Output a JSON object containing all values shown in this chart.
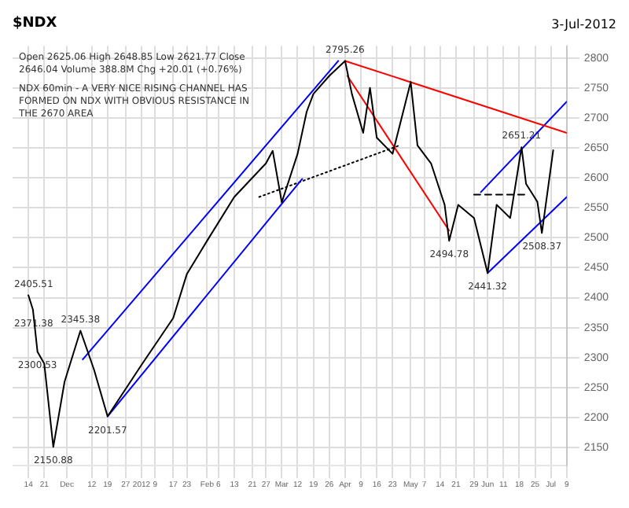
{
  "chart_data": {
    "type": "line",
    "title": "$NDX",
    "subtitle": "3-Jul-2012",
    "annotations": [
      "Open 2625.06 High 2648.85 Low 2621.77 Close 2646.04 Volume 388.8M Chg +20.01 (+0.76%)",
      "NDX 60min - A VERY NICE RISING CHANNEL HAS FORMED ON NDX WITH OBVIOUS RESISTANCE IN THE 2670 AREA",
      {
        "text": "2405.51",
        "x": "2011-11-14",
        "y": 2404
      },
      {
        "text": "2371.38",
        "x": "2011-11-16",
        "y": 2380
      },
      {
        "text": "2300.53",
        "x": "2011-11-18",
        "y": 2310
      },
      {
        "text": "2150.88",
        "x": "2011-11-25",
        "y": 2151
      },
      {
        "text": "2345.38",
        "x": "2011-12-07",
        "y": 2345
      },
      {
        "text": "2201.57",
        "x": "2011-12-19",
        "y": 2202
      },
      {
        "text": "2795.26",
        "x": "2012-04-02",
        "y": 2795
      },
      {
        "text": "2494.78",
        "x": "2012-05-18",
        "y": 2495
      },
      {
        "text": "2441.32",
        "x": "2012-06-04",
        "y": 2441
      },
      {
        "text": "2651.21",
        "x": "2012-06-19",
        "y": 2651
      },
      {
        "text": "2508.37",
        "x": "2012-06-28",
        "y": 2508
      }
    ],
    "series": [
      {
        "color": "#000000",
        "x": [
          "2011-11-14",
          "2011-11-16",
          "2011-11-18",
          "2011-11-21",
          "2011-11-25",
          "2011-11-30",
          "2011-12-07",
          "2011-12-13",
          "2011-12-19",
          "2012-01-03",
          "2012-01-17",
          "2012-01-23",
          "2012-02-01",
          "2012-02-13",
          "2012-02-27",
          "2012-03-01",
          "2012-03-05",
          "2012-03-12",
          "2012-03-16",
          "2012-03-19",
          "2012-03-26",
          "2012-04-02",
          "2012-04-05",
          "2012-04-10",
          "2012-04-13",
          "2012-04-16",
          "2012-04-23",
          "2012-05-01",
          "2012-05-04",
          "2012-05-10",
          "2012-05-16",
          "2012-05-18",
          "2012-05-22",
          "2012-05-29",
          "2012-06-04",
          "2012-06-08",
          "2012-06-14",
          "2012-06-19",
          "2012-06-21",
          "2012-06-26",
          "2012-06-28",
          "2012-07-03"
        ],
        "values": [
          2404,
          2380,
          2310,
          2290,
          2151,
          2260,
          2345,
          2280,
          2202,
          2288,
          2366,
          2439,
          2495,
          2568,
          2624,
          2645,
          2559,
          2640,
          2710,
          2740,
          2770,
          2795,
          2740,
          2675,
          2750,
          2667,
          2640,
          2760,
          2654,
          2624,
          2555,
          2495,
          2555,
          2533,
          2441,
          2555,
          2533,
          2651,
          2590,
          2560,
          2508,
          2646
        ]
      },
      {
        "color": "#0000ff",
        "x": [
          "2011-12-08",
          "2012-03-30"
        ],
        "values": [
          2297,
          2795
        ]
      },
      {
        "color": "#0000ff",
        "x": [
          "2011-12-19",
          "2012-03-14"
        ],
        "values": [
          2202,
          2598
        ]
      },
      {
        "color": "#ff0000",
        "x": [
          "2012-04-02",
          "2012-07-09"
        ],
        "values": [
          2795,
          2675
        ]
      },
      {
        "color": "#ff0000",
        "x": [
          "2012-04-03",
          "2012-05-18"
        ],
        "values": [
          2770,
          2512
        ]
      },
      {
        "color": "#0000ff",
        "x": [
          "2012-06-01",
          "2012-07-09"
        ],
        "values": [
          2576,
          2727
        ]
      },
      {
        "color": "#0000ff",
        "x": [
          "2012-06-04",
          "2012-07-09"
        ],
        "values": [
          2441,
          2568
        ]
      },
      {
        "color": "#000000",
        "line_style": "dotted",
        "x": [
          "2012-02-24",
          "2012-04-26"
        ],
        "values": [
          2568,
          2654
        ]
      },
      {
        "color": "#000000",
        "line_style": "dashed",
        "x": [
          "2012-05-29",
          "2012-06-21"
        ],
        "values": [
          2572,
          2572
        ]
      }
    ],
    "xlim": [
      "2011-11-07",
      "2012-07-09"
    ],
    "xticks": [
      {
        "value": "2011-11-14",
        "label": "14"
      },
      {
        "value": "2011-11-21",
        "label": "21"
      },
      {
        "value": "2011-12-01",
        "label": "Dec"
      },
      {
        "value": "2011-12-12",
        "label": "12"
      },
      {
        "value": "2011-12-19",
        "label": "19"
      },
      {
        "value": "2011-12-27",
        "label": "27"
      },
      {
        "value": "2012-01-03",
        "label": "2012"
      },
      {
        "value": "2012-01-09",
        "label": "9"
      },
      {
        "value": "2012-01-17",
        "label": "17"
      },
      {
        "value": "2012-01-23",
        "label": "23"
      },
      {
        "value": "2012-02-01",
        "label": "Feb"
      },
      {
        "value": "2012-02-06",
        "label": "6"
      },
      {
        "value": "2012-02-13",
        "label": "13"
      },
      {
        "value": "2012-02-21",
        "label": "21"
      },
      {
        "value": "2012-02-27",
        "label": "27"
      },
      {
        "value": "2012-03-05",
        "label": "Mar"
      },
      {
        "value": "2012-03-12",
        "label": "12"
      },
      {
        "value": "2012-03-19",
        "label": "19"
      },
      {
        "value": "2012-03-26",
        "label": "26"
      },
      {
        "value": "2012-04-02",
        "label": "Apr"
      },
      {
        "value": "2012-04-09",
        "label": "9"
      },
      {
        "value": "2012-04-16",
        "label": "16"
      },
      {
        "value": "2012-04-23",
        "label": "23"
      },
      {
        "value": "2012-05-01",
        "label": "May"
      },
      {
        "value": "2012-05-07",
        "label": "7"
      },
      {
        "value": "2012-05-14",
        "label": "14"
      },
      {
        "value": "2012-05-21",
        "label": "21"
      },
      {
        "value": "2012-05-29",
        "label": "29"
      },
      {
        "value": "2012-06-04",
        "label": "Jun"
      },
      {
        "value": "2012-06-11",
        "label": "11"
      },
      {
        "value": "2012-06-18",
        "label": "18"
      },
      {
        "value": "2012-06-25",
        "label": "25"
      },
      {
        "value": "2012-07-02",
        "label": "Jul"
      },
      {
        "value": "2012-07-09",
        "label": "9"
      }
    ],
    "ylim": [
      2120,
      2820
    ],
    "yticks": [
      2150,
      2200,
      2250,
      2300,
      2350,
      2400,
      2450,
      2500,
      2550,
      2600,
      2650,
      2700,
      2750,
      2800
    ],
    "grid": true,
    "marker": "none",
    "line_style": "solid",
    "legend": false
  }
}
